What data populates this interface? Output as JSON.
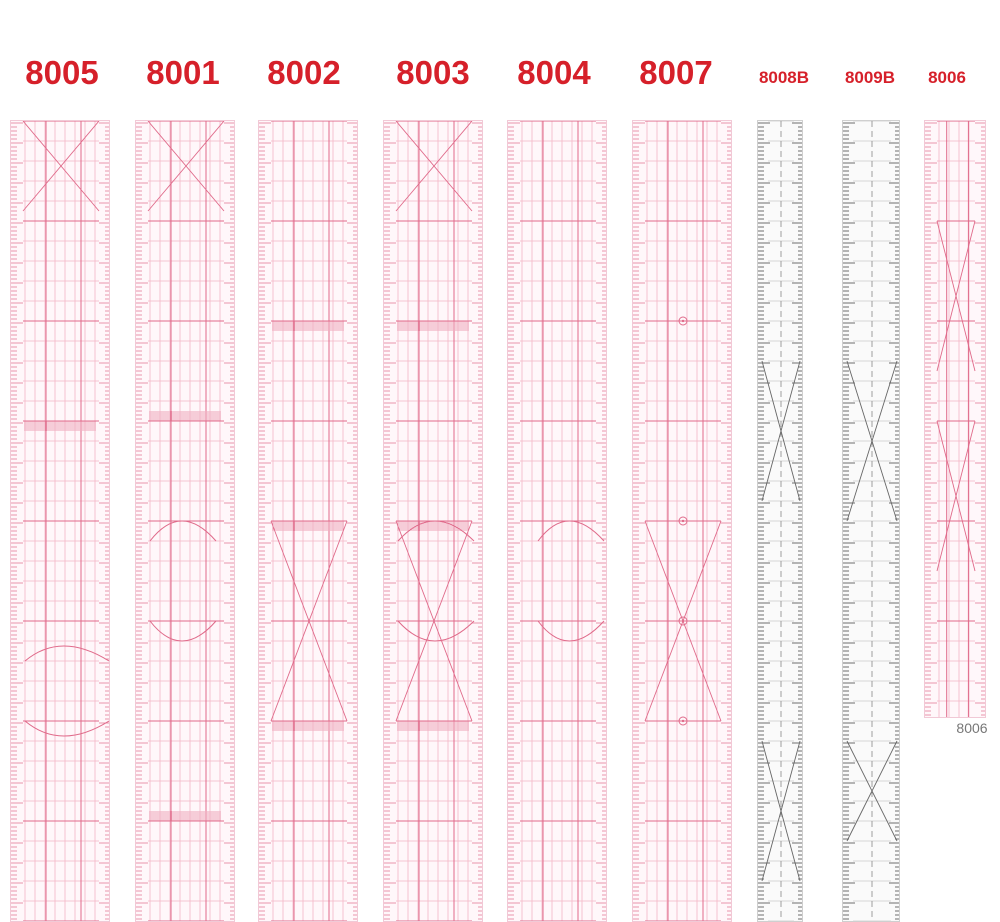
{
  "labels": [
    "8005",
    "8001",
    "8002",
    "8003",
    "8004",
    "8007",
    "8008B",
    "8009B",
    "8006"
  ],
  "caption": "8006",
  "colors": {
    "label": "#d6202a",
    "pink_line": "#e06a8a",
    "pink_light": "#f3b4c6",
    "black_line": "#333333"
  }
}
